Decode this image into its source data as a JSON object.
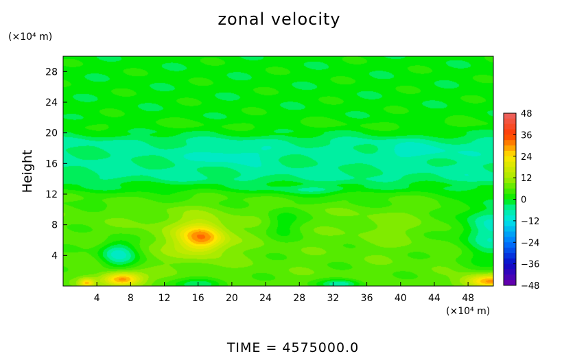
{
  "chart_data": {
    "type": "heatmap",
    "title": "zonal velocity",
    "ylabel": "Height",
    "y_unit_label": "(×10⁴ m)",
    "x_unit_label": "(×10⁴ m)",
    "footer": "TIME  =  4575000.0",
    "xlim": [
      0,
      51
    ],
    "ylim": [
      0,
      30
    ],
    "x_ticks": [
      4,
      8,
      12,
      16,
      20,
      24,
      28,
      32,
      36,
      40,
      44,
      48
    ],
    "y_ticks": [
      4,
      8,
      12,
      16,
      20,
      24,
      28
    ],
    "colorbar": {
      "range": [
        -48,
        48
      ],
      "ticks": [
        48,
        36,
        24,
        12,
        0,
        -12,
        -24,
        -36,
        -48
      ]
    },
    "field": {
      "background": [
        {
          "y": [
            21,
            30
          ],
          "value": 0
        },
        {
          "y": [
            20,
            21
          ],
          "value": 3
        },
        {
          "y": [
            13,
            20
          ],
          "value": -5
        },
        {
          "y": [
            11,
            13
          ],
          "value": 3
        },
        {
          "y": [
            0,
            11
          ],
          "value": 6
        }
      ],
      "features": [
        {
          "x": 16.5,
          "y": 6.3,
          "sx": 2.5,
          "sy": 1.8,
          "value": 20
        },
        {
          "x": 15.5,
          "y": 6.5,
          "sx": 5.5,
          "sy": 3.5,
          "value": 6
        },
        {
          "x": 6.5,
          "y": 4.2,
          "sx": 2.2,
          "sy": 1.8,
          "value": -15
        },
        {
          "x": 7.0,
          "y": 0.9,
          "sx": 2.3,
          "sy": 0.9,
          "value": 26
        },
        {
          "x": 2.8,
          "y": 0.4,
          "sx": 0.9,
          "sy": 0.6,
          "value": 18
        },
        {
          "x": 50.5,
          "y": 0.6,
          "sx": 3.0,
          "sy": 0.9,
          "value": 24
        },
        {
          "x": 50.5,
          "y": 7.5,
          "sx": 3.5,
          "sy": 4.0,
          "value": -14
        },
        {
          "x": 33.0,
          "y": 0.3,
          "sx": 2.5,
          "sy": 0.6,
          "value": -12
        },
        {
          "x": 16.5,
          "y": 0.3,
          "sx": 3.0,
          "sy": 0.8,
          "value": -10
        },
        {
          "x": 26.0,
          "y": 8.2,
          "sx": 2.0,
          "sy": 1.8,
          "value": -6
        },
        {
          "x": 38.0,
          "y": 7.5,
          "sx": 4.0,
          "sy": 2.5,
          "value": 3
        },
        {
          "x": 20.0,
          "y": 17.0,
          "sx": 4.0,
          "sy": 1.0,
          "value": -5
        },
        {
          "x": 42.0,
          "y": 17.5,
          "sx": 5.0,
          "sy": 1.0,
          "value": -4
        },
        {
          "x": 30.0,
          "y": 12.5,
          "sx": 5.0,
          "sy": 0.6,
          "value": -5
        }
      ]
    }
  }
}
